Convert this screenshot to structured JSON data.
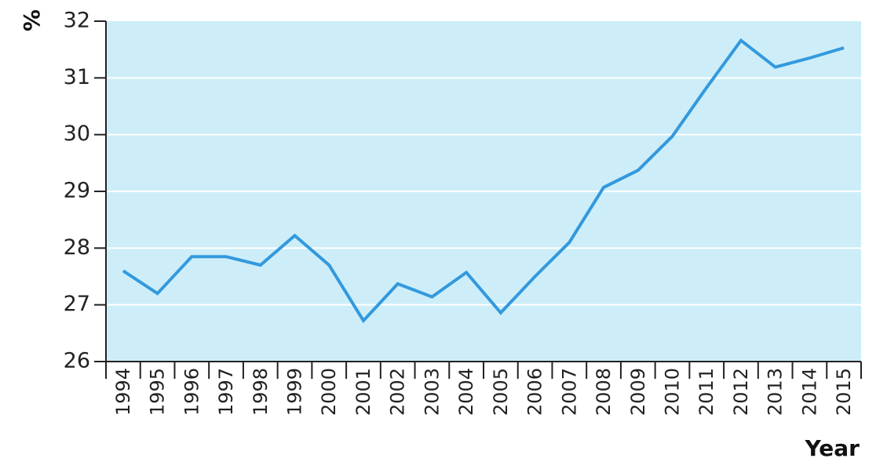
{
  "chart_data": {
    "type": "line",
    "title": "",
    "xlabel": "Year",
    "ylabel": "%",
    "categories": [
      "1994",
      "1995",
      "1996",
      "1997",
      "1998",
      "1999",
      "2000",
      "2001",
      "2002",
      "2003",
      "2004",
      "2005",
      "2006",
      "2007",
      "2008",
      "2009",
      "2010",
      "2011",
      "2012",
      "2013",
      "2014",
      "2015"
    ],
    "series": [
      {
        "values": [
          27.6,
          27.2,
          27.85,
          27.85,
          27.7,
          28.22,
          27.7,
          26.72,
          27.37,
          27.14,
          27.57,
          26.86,
          27.5,
          28.1,
          29.07,
          29.37,
          29.97,
          30.83,
          31.66,
          31.19,
          31.35,
          31.53
        ]
      }
    ],
    "yticks": [
      26,
      27,
      28,
      29,
      30,
      31,
      32
    ],
    "ylim": [
      26,
      32
    ],
    "grid": true,
    "colors": {
      "plot_background": "#cdeef9",
      "line": "#3399dd",
      "gridline": "#ffffff",
      "axis": "#222222"
    }
  }
}
